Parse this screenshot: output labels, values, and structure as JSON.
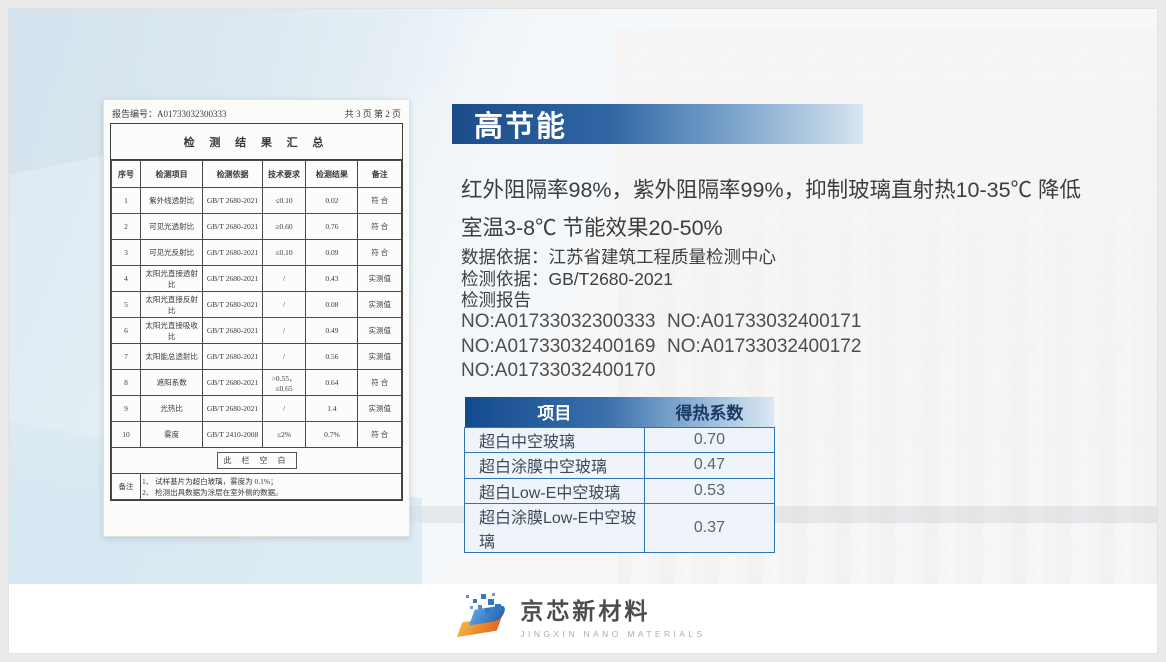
{
  "banner": {
    "title": "高节能"
  },
  "intro_lines": [
    "红外阻隔率98%，紫外阻隔率99%，抑制玻璃直射热10-35℃ 降低",
    "室温3-8℃ 节能效果20-50%"
  ],
  "meta_lines": [
    "数据依据：江苏省建筑工程质量检测中心",
    "检测依据：GB/T2680-2021",
    "检测报告"
  ],
  "report_numbers": [
    "NO:A01733032300333",
    "NO:A01733032400171",
    "NO:A01733032400169",
    "NO:A01733032400172",
    "NO:A01733032400170"
  ],
  "heat_table": {
    "headers": [
      "项目",
      "得热系数"
    ],
    "rows": [
      [
        "超白中空玻璃",
        "0.70"
      ],
      [
        "超白涂膜中空玻璃",
        "0.47"
      ],
      [
        "超白Low-E中空玻璃",
        "0.53"
      ],
      [
        "超白涂膜Low-E中空玻璃",
        "0.37"
      ]
    ]
  },
  "report_doc": {
    "report_no": "报告编号：A01733032300333",
    "page_info": "共 3 页 第 2 页",
    "doc_title": "检 测 结 果 汇 总",
    "columns": [
      "序号",
      "检测项目",
      "检测依据",
      "技术要求",
      "检测结果",
      "备注"
    ],
    "rows": [
      [
        "1",
        "紫外线透射比",
        "GB/T 2680-2021",
        "≤0.10",
        "0.02",
        "符 合"
      ],
      [
        "2",
        "可见光透射比",
        "GB/T 2680-2021",
        "≥0.60",
        "0.76",
        "符 合"
      ],
      [
        "3",
        "可见光反射比",
        "GB/T 2680-2021",
        "≤0.10",
        "0.09",
        "符 合"
      ],
      [
        "4",
        "太阳光直接透射比",
        "GB/T 2680-2021",
        "/",
        "0.43",
        "实测值"
      ],
      [
        "5",
        "太阳光直接反射比",
        "GB/T 2680-2021",
        "/",
        "0.08",
        "实测值"
      ],
      [
        "6",
        "太阳光直接吸收比",
        "GB/T 2680-2021",
        "/",
        "0.49",
        "实测值"
      ],
      [
        "7",
        "太阳能总透射比",
        "GB/T 2680-2021",
        "/",
        "0.56",
        "实测值"
      ],
      [
        "8",
        "遮阳系数",
        "GB/T 2680-2021",
        ">0.55，≤0.65",
        "0.64",
        "符 合"
      ],
      [
        "9",
        "光热比",
        "GB/T 2680-2021",
        "/",
        "1.4",
        "实测值"
      ],
      [
        "10",
        "雾度",
        "GB/T 2410-2008",
        "≤2%",
        "0.7%",
        "符 合"
      ]
    ],
    "blank_note": "此 栏 空 白",
    "remark_label": "备注",
    "remarks": [
      "1、 试样基片为超白玻璃，雾度为 0.1%；",
      "2、 检测出具数据为涂层在室外侧的数据。"
    ]
  },
  "logo": {
    "name": "京芯新材料",
    "subtitle": "JINGXIN NANO MATERIALS"
  },
  "colors": {
    "banner_start": "#1b4c8a",
    "banner_end": "#d7e5f2",
    "table_header_start": "#134a8e",
    "table_header_end": "#dce8f3",
    "table_border": "#2e75b6",
    "logo_blue": "#2e7ac6",
    "logo_orange": "#e2661f"
  }
}
